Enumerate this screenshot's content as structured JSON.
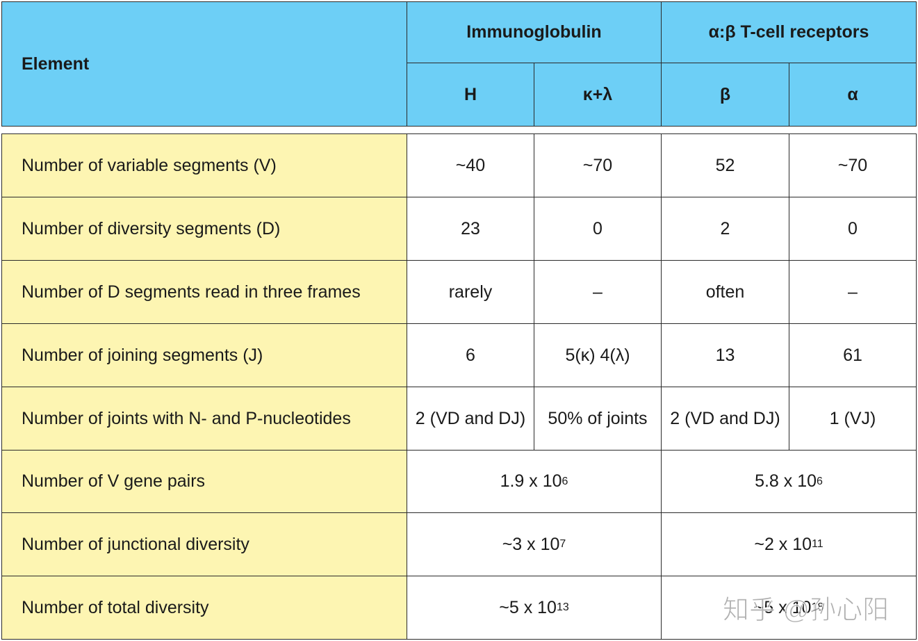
{
  "header": {
    "element": "Element",
    "groups": [
      {
        "label": "Immunoglobulin",
        "columns": [
          "H",
          "κ+λ"
        ]
      },
      {
        "label": "α:β T-cell receptors",
        "columns": [
          "β",
          "α"
        ]
      }
    ]
  },
  "rows": [
    {
      "label": "Number of variable segments (V)",
      "cells": [
        "~40",
        "~70",
        "52",
        "~70"
      ]
    },
    {
      "label": "Number of diversity segments (D)",
      "cells": [
        "23",
        "0",
        "2",
        "0"
      ]
    },
    {
      "label": "Number of D segments read in three frames",
      "cells": [
        "rarely",
        "–",
        "often",
        "–"
      ]
    },
    {
      "label": "Number of joining segments (J)",
      "cells": [
        "6",
        "5(κ) 4(λ)",
        "13",
        "61"
      ]
    },
    {
      "label": "Number of joints with N- and P-nucleotides",
      "cells": [
        "2 (VD and DJ)",
        "50% of joints",
        "2 (VD and DJ)",
        "1 (VJ)"
      ]
    },
    {
      "label": "Number of V gene pairs",
      "cells": [
        {
          "base": "1.9 x 10",
          "exp": "6"
        },
        {
          "base": "5.8 x 10",
          "exp": "6"
        }
      ]
    },
    {
      "label": "Number of junctional diversity",
      "cells": [
        {
          "base": "~3 x 10",
          "exp": "7"
        },
        {
          "base": "~2 x 10",
          "exp": "11"
        }
      ]
    },
    {
      "label": "Number of total diversity",
      "cells": [
        {
          "base": "~5 x 10",
          "exp": "13"
        },
        {
          "base": "~5 x 10",
          "exp": "18"
        }
      ]
    }
  ],
  "watermark": "知乎 @孙心阳"
}
